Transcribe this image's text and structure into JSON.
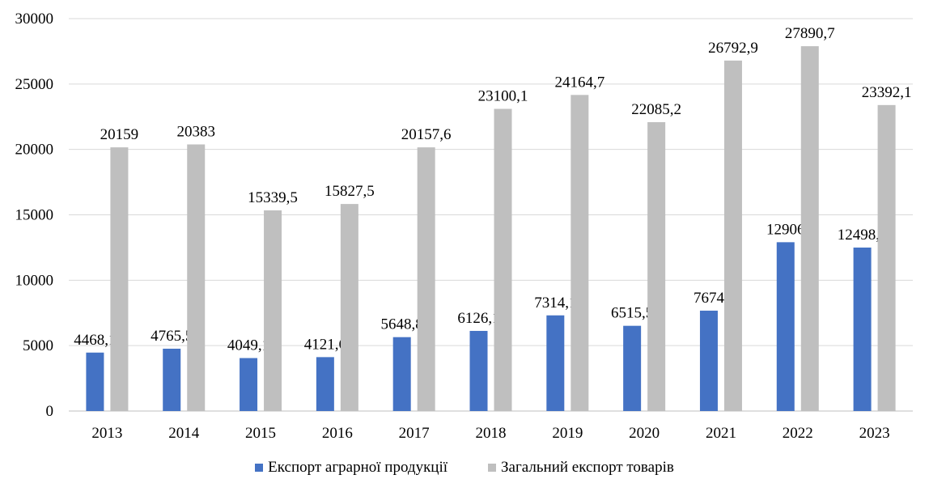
{
  "chart_data": {
    "type": "bar",
    "title": "",
    "xlabel": "",
    "ylabel": "",
    "ylim": [
      0,
      30000
    ],
    "yticks": [
      0,
      5000,
      10000,
      15000,
      20000,
      25000,
      30000
    ],
    "grid": true,
    "legend_position": "bottom",
    "categories": [
      "2013",
      "2014",
      "2015",
      "2016",
      "2017",
      "2018",
      "2019",
      "2020",
      "2021",
      "2022",
      "2023"
    ],
    "series": [
      {
        "name": "Експорт аграрної продукції",
        "color": "#4472C4",
        "values": [
          4468.1,
          4765.5,
          4049.1,
          4121.6,
          5648.8,
          6126.1,
          7314.1,
          6515.5,
          7674,
          12906,
          12498.1
        ],
        "labels": [
          "4468,1",
          "4765,5",
          "4049,1",
          "4121,6",
          "5648,8",
          "6126,1",
          "7314,1",
          "6515,5",
          "7674",
          "12906",
          "12498,1"
        ]
      },
      {
        "name": "Загальний експорт товарів",
        "color": "#BFBFBF",
        "values": [
          20159,
          20383,
          15339.5,
          15827.5,
          20157.6,
          23100.1,
          24164.7,
          22085.2,
          26792.9,
          27890.7,
          23392.1
        ],
        "labels": [
          "20159",
          "20383",
          "15339,5",
          "15827,5",
          "20157,6",
          "23100,1",
          "24164,7",
          "22085,2",
          "26792,9",
          "27890,7",
          "23392,1"
        ]
      }
    ]
  }
}
